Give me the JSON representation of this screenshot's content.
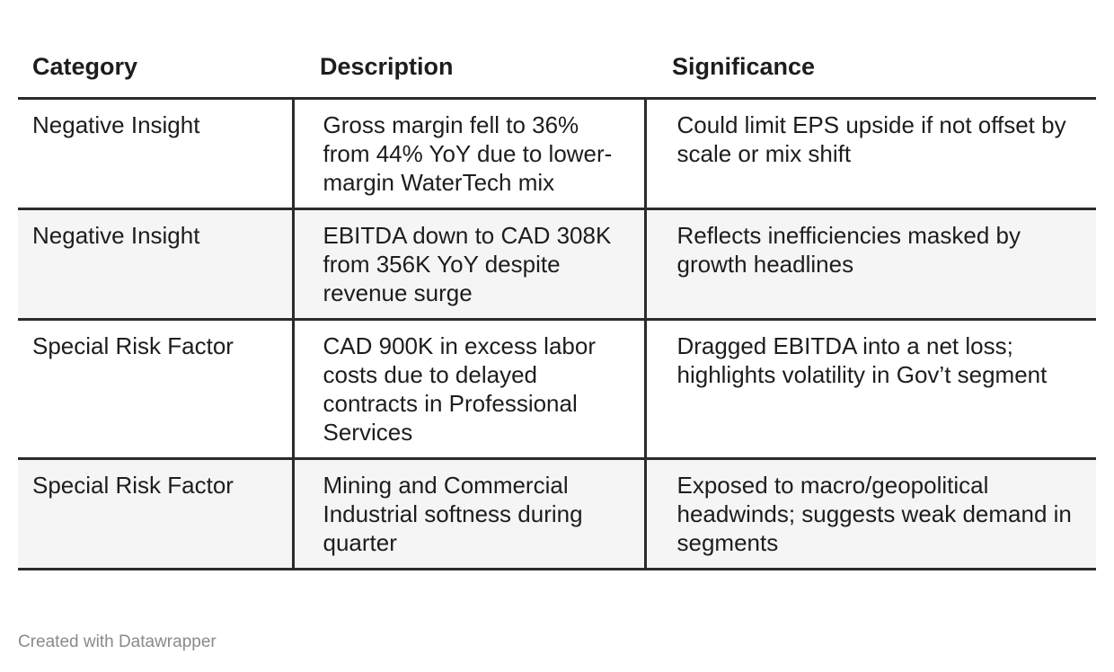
{
  "chart_data": {
    "type": "table",
    "columns": [
      "Category",
      "Description",
      "Significance"
    ],
    "rows": [
      {
        "category": "Negative Insight",
        "description": "Gross margin fell to 36% from 44% YoY due to lower-margin WaterTech mix",
        "significance": "Could limit EPS upside if not offset by scale or mix shift"
      },
      {
        "category": "Negative Insight",
        "description": "EBITDA down to CAD 308K from 356K YoY despite revenue surge",
        "significance": "Reflects inefficiencies masked by growth headlines"
      },
      {
        "category": "Special Risk Factor",
        "description": "CAD 900K in excess labor costs due to delayed contracts in Professional Services",
        "significance": "Dragged EBITDA into a net loss; highlights volatility in Gov’t segment"
      },
      {
        "category": "Special Risk Factor",
        "description": "Mining and Commercial Industrial softness during quarter",
        "significance": "Exposed to macro/geopolitical headwinds; suggests weak demand in segments"
      }
    ]
  },
  "footer": {
    "credit": "Created with Datawrapper"
  }
}
